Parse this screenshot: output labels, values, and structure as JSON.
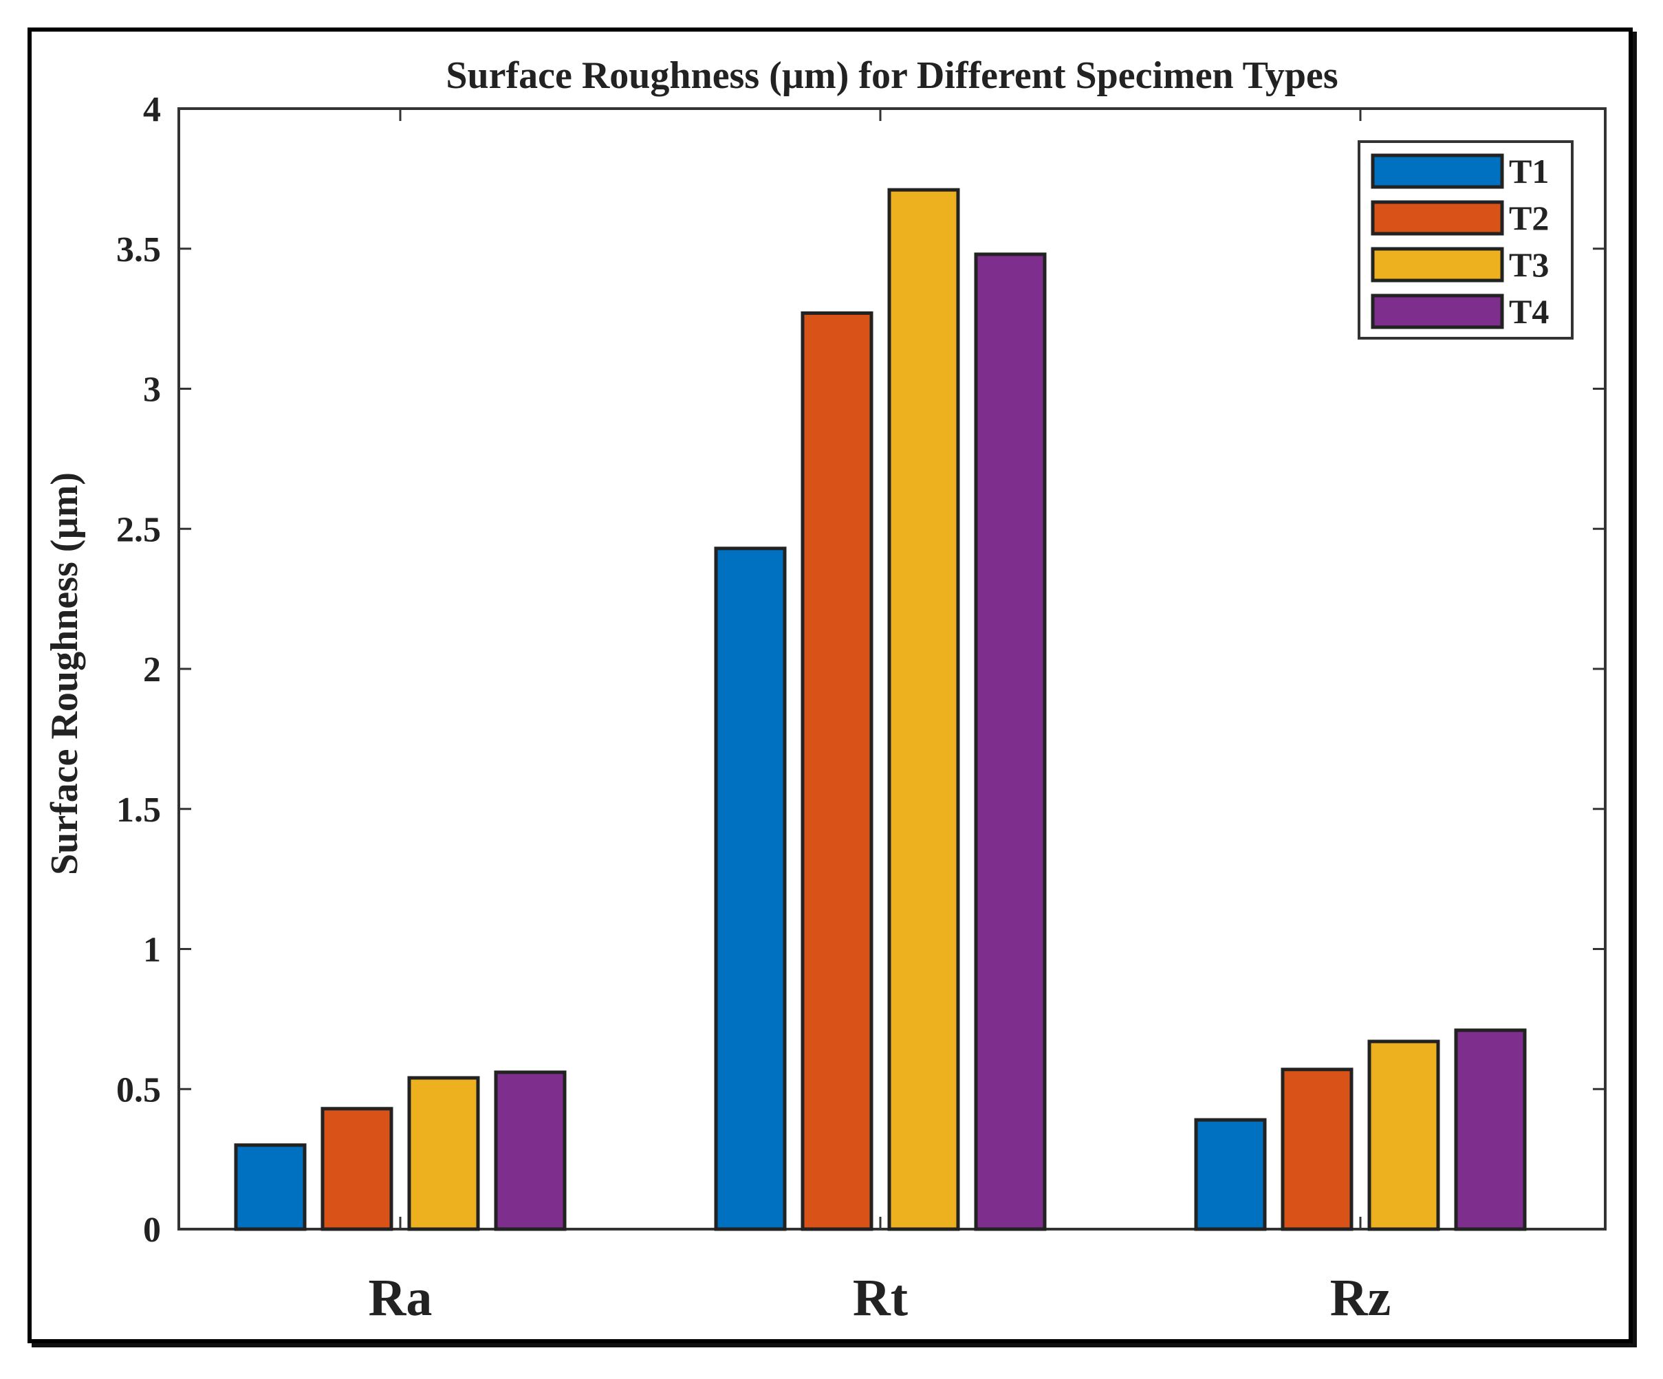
{
  "chart_data": {
    "type": "bar",
    "title": "Surface Roughness (µm) for Different Specimen Types",
    "xlabel": "",
    "ylabel": "Surface Roughness (µm)",
    "categories": [
      "Ra",
      "Rt",
      "Rz"
    ],
    "ylim": [
      0,
      4
    ],
    "yticks": [
      0,
      0.5,
      1,
      1.5,
      2,
      2.5,
      3,
      3.5,
      4
    ],
    "ytick_labels": [
      "0",
      "0.5",
      "1",
      "1.5",
      "2",
      "2.5",
      "3",
      "3.5",
      "4"
    ],
    "grid": false,
    "legend_position": "top-right",
    "series": [
      {
        "name": "T1",
        "color": "#0070C0",
        "values": [
          0.3,
          2.43,
          0.39
        ]
      },
      {
        "name": "T2",
        "color": "#D95319",
        "values": [
          0.43,
          3.27,
          0.57
        ]
      },
      {
        "name": "T3",
        "color": "#EDB120",
        "values": [
          0.54,
          3.71,
          0.67
        ]
      },
      {
        "name": "T4",
        "color": "#7E2F8E",
        "values": [
          0.56,
          3.48,
          0.71
        ]
      }
    ]
  }
}
